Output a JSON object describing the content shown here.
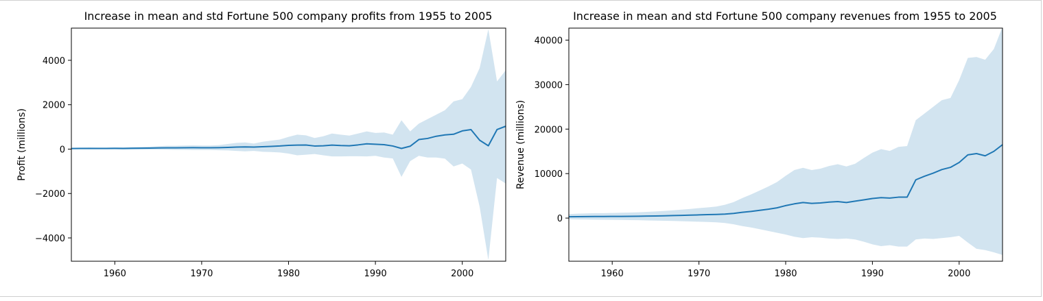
{
  "chart_data": [
    {
      "type": "line",
      "title": "Increase in mean and std Fortune 500 company profits from 1955 to 2005",
      "xlabel": "",
      "ylabel": "Profit (millions)",
      "xlim": [
        1955,
        2005
      ],
      "ylim": [
        -5050,
        5450
      ],
      "xticks": [
        1960,
        1970,
        1980,
        1990,
        2000
      ],
      "yticks": [
        -4000,
        -2000,
        0,
        2000,
        4000
      ],
      "ytick_labels": [
        "−4000",
        "−2000",
        "0",
        "2000",
        "4000"
      ],
      "grid": false,
      "line_color": "#1f77b4",
      "band_color": "#1f77b4",
      "band_opacity": 0.2,
      "series": [
        {
          "x": [
            1955,
            1956,
            1957,
            1958,
            1959,
            1960,
            1961,
            1962,
            1963,
            1964,
            1965,
            1966,
            1967,
            1968,
            1969,
            1970,
            1971,
            1972,
            1973,
            1974,
            1975,
            1976,
            1977,
            1978,
            1979,
            1980,
            1981,
            1982,
            1983,
            1984,
            1985,
            1986,
            1987,
            1988,
            1989,
            1990,
            1991,
            1992,
            1993,
            1994,
            1995,
            1996,
            1997,
            1998,
            1999,
            2000,
            2001,
            2002,
            2003,
            2004,
            2005
          ],
          "mean": [
            26,
            31,
            32,
            31,
            29,
            33,
            32,
            37,
            40,
            45,
            52,
            57,
            58,
            62,
            65,
            60,
            61,
            66,
            75,
            92,
            100,
            93,
            108,
            123,
            141,
            170,
            180,
            185,
            140,
            150,
            180,
            160,
            150,
            190,
            240,
            220,
            200,
            140,
            30,
            130,
            430,
            480,
            580,
            640,
            670,
            820,
            880,
            400,
            150,
            880,
            1030
          ],
          "upper": [
            60,
            70,
            75,
            70,
            70,
            80,
            80,
            90,
            100,
            110,
            130,
            150,
            150,
            160,
            170,
            160,
            160,
            180,
            230,
            280,
            300,
            250,
            330,
            380,
            430,
            550,
            650,
            620,
            500,
            580,
            700,
            650,
            610,
            700,
            800,
            730,
            750,
            650,
            1300,
            800,
            1150,
            1350,
            1550,
            1750,
            2150,
            2250,
            2800,
            3650,
            5400,
            3050,
            3550
          ],
          "lower": [
            -10,
            -10,
            -10,
            -10,
            -10,
            -10,
            -15,
            -20,
            -20,
            -20,
            -20,
            -25,
            -30,
            -30,
            -40,
            -40,
            -40,
            -50,
            -60,
            -80,
            -100,
            -80,
            -120,
            -130,
            -150,
            -200,
            -280,
            -250,
            -220,
            -280,
            -330,
            -330,
            -320,
            -320,
            -330,
            -300,
            -380,
            -420,
            -1250,
            -540,
            -300,
            -380,
            -380,
            -430,
            -780,
            -650,
            -920,
            -2600,
            -5000,
            -1300,
            -1550
          ]
        }
      ]
    },
    {
      "type": "line",
      "title": "Increase in mean and std Fortune 500 company revenues from 1955 to 2005",
      "xlabel": "",
      "ylabel": "Revenue (millions)",
      "xlim": [
        1955,
        2005
      ],
      "ylim": [
        -9700,
        42700
      ],
      "xticks": [
        1960,
        1970,
        1980,
        1990,
        2000
      ],
      "yticks": [
        0,
        10000,
        20000,
        30000,
        40000
      ],
      "ytick_labels": [
        "0",
        "10000",
        "20000",
        "30000",
        "40000"
      ],
      "grid": false,
      "line_color": "#1f77b4",
      "band_color": "#1f77b4",
      "band_opacity": 0.2,
      "series": [
        {
          "x": [
            1955,
            1956,
            1957,
            1958,
            1959,
            1960,
            1961,
            1962,
            1963,
            1964,
            1965,
            1966,
            1967,
            1968,
            1969,
            1970,
            1971,
            1972,
            1973,
            1974,
            1975,
            1976,
            1977,
            1978,
            1979,
            1980,
            1981,
            1982,
            1983,
            1984,
            1985,
            1986,
            1987,
            1988,
            1989,
            1990,
            1991,
            1992,
            1993,
            1994,
            1995,
            1996,
            1997,
            1998,
            1999,
            2000,
            2001,
            2002,
            2003,
            2004,
            2005
          ],
          "mean": [
            300,
            320,
            340,
            350,
            360,
            370,
            380,
            400,
            420,
            450,
            480,
            520,
            560,
            600,
            660,
            720,
            780,
            820,
            900,
            1050,
            1300,
            1500,
            1750,
            2000,
            2300,
            2800,
            3200,
            3500,
            3300,
            3400,
            3600,
            3700,
            3500,
            3800,
            4100,
            4400,
            4600,
            4500,
            4700,
            4700,
            8600,
            9400,
            10100,
            10900,
            11400,
            12500,
            14200,
            14500,
            14000,
            15000,
            16500
          ],
          "upper": [
            900,
            1000,
            1050,
            1100,
            1100,
            1150,
            1200,
            1250,
            1300,
            1400,
            1500,
            1600,
            1750,
            1900,
            2050,
            2250,
            2400,
            2600,
            3000,
            3600,
            4500,
            5300,
            6200,
            7100,
            8100,
            9500,
            10800,
            11300,
            10800,
            11100,
            11700,
            12100,
            11600,
            12200,
            13500,
            14700,
            15500,
            15100,
            16000,
            16200,
            22000,
            23500,
            25000,
            26500,
            27000,
            31000,
            36000,
            36200,
            35600,
            38000,
            43000
          ],
          "lower": [
            -250,
            -300,
            -320,
            -350,
            -380,
            -400,
            -420,
            -450,
            -480,
            -520,
            -560,
            -600,
            -650,
            -700,
            -760,
            -820,
            -880,
            -950,
            -1100,
            -1400,
            -1800,
            -2100,
            -2500,
            -2900,
            -3300,
            -3700,
            -4200,
            -4500,
            -4300,
            -4400,
            -4600,
            -4700,
            -4600,
            -4800,
            -5300,
            -5900,
            -6300,
            -6100,
            -6400,
            -6400,
            -4800,
            -4600,
            -4700,
            -4500,
            -4300,
            -4000,
            -5500,
            -6900,
            -7200,
            -7700,
            -8300
          ]
        }
      ]
    }
  ]
}
